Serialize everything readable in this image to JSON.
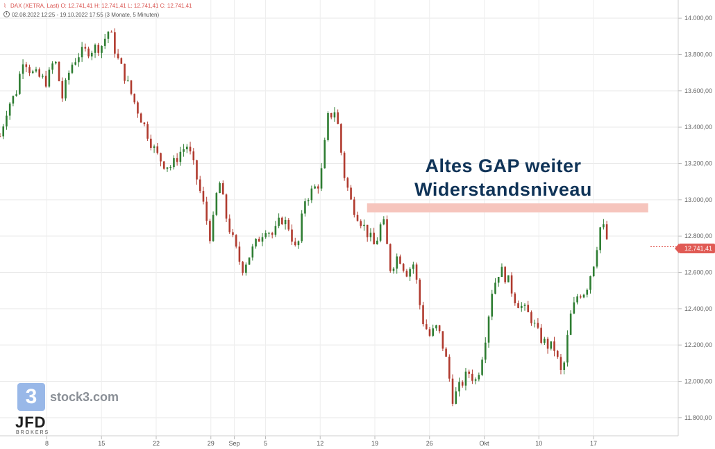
{
  "header": {
    "instrument_line": "DAX (XETRA, Last)  O: 12.741,41  H: 12.741,41  L: 12.741,41  C: 12.741,41",
    "range_line": "02.08.2022 12:25 - 19.10.2022 17:55   (3 Monate, 5 Minuten)"
  },
  "annotation": {
    "line1": "Altes GAP weiter",
    "line2": "Widerstandsniveau"
  },
  "last_price_label": "12.741,41",
  "watermark": {
    "logo_glyph": "3",
    "brand": "stock3.com",
    "broker": "JFD",
    "broker_sub": "BROKERS"
  },
  "colors": {
    "up": "#2e7d32",
    "down": "#b03a2e",
    "resistance_band": "#f6c5bd",
    "annotation_text": "#0f3357",
    "last_price_tag": "#e05a54"
  },
  "chart_data": {
    "type": "candlestick",
    "title": "",
    "xlabel": "",
    "ylabel": "",
    "ylim": [
      11700,
      14100
    ],
    "y_ticks": [
      11800,
      12000,
      12200,
      12400,
      12600,
      12800,
      13000,
      13200,
      13400,
      13600,
      13800,
      14000
    ],
    "y_tick_labels": [
      "11.800,00",
      "12.000,00",
      "12.200,00",
      "12.400,00",
      "12.600,00",
      "12.800,00",
      "13.000,00",
      "13.200,00",
      "13.400,00",
      "13.600,00",
      "13.800,00",
      "14.000,00"
    ],
    "x_ticks": [
      {
        "label": "8",
        "date": "2022-08-08"
      },
      {
        "label": "15",
        "date": "2022-08-15"
      },
      {
        "label": "22",
        "date": "2022-08-22"
      },
      {
        "label": "29",
        "date": "2022-08-29"
      },
      {
        "label": "Sep",
        "date": "2022-09-01"
      },
      {
        "label": "5",
        "date": "2022-09-05"
      },
      {
        "label": "12",
        "date": "2022-09-12"
      },
      {
        "label": "19",
        "date": "2022-09-19"
      },
      {
        "label": "26",
        "date": "2022-09-26"
      },
      {
        "label": "Okt",
        "date": "2022-10-03"
      },
      {
        "label": "10",
        "date": "2022-10-10"
      },
      {
        "label": "17",
        "date": "2022-10-17"
      }
    ],
    "path": [
      {
        "date": "2022-08-02",
        "value": 13350
      },
      {
        "date": "2022-08-03",
        "value": 13520
      },
      {
        "date": "2022-08-04",
        "value": 13580
      },
      {
        "date": "2022-08-05",
        "value": 13790
      },
      {
        "date": "2022-08-06",
        "value": 13700
      },
      {
        "date": "2022-08-08",
        "value": 13650
      },
      {
        "date": "2022-08-09",
        "value": 13780
      },
      {
        "date": "2022-08-10",
        "value": 13560
      },
      {
        "date": "2022-08-11",
        "value": 13730
      },
      {
        "date": "2022-08-12",
        "value": 13800
      },
      {
        "date": "2022-08-15",
        "value": 13850
      },
      {
        "date": "2022-08-16",
        "value": 13940
      },
      {
        "date": "2022-08-17",
        "value": 13780
      },
      {
        "date": "2022-08-18",
        "value": 13680
      },
      {
        "date": "2022-08-19",
        "value": 13560
      },
      {
        "date": "2022-08-22",
        "value": 13250
      },
      {
        "date": "2022-08-23",
        "value": 13200
      },
      {
        "date": "2022-08-24",
        "value": 13180
      },
      {
        "date": "2022-08-25",
        "value": 13260
      },
      {
        "date": "2022-08-26",
        "value": 13300
      },
      {
        "date": "2022-08-27",
        "value": 13150
      },
      {
        "date": "2022-08-28",
        "value": 12980
      },
      {
        "date": "2022-08-29",
        "value": 12780
      },
      {
        "date": "2022-08-30",
        "value": 13120
      },
      {
        "date": "2022-08-31",
        "value": 12900
      },
      {
        "date": "2022-09-01",
        "value": 12750
      },
      {
        "date": "2022-09-02",
        "value": 12620
      },
      {
        "date": "2022-09-03",
        "value": 12700
      },
      {
        "date": "2022-09-05",
        "value": 12850
      },
      {
        "date": "2022-09-06",
        "value": 12800
      },
      {
        "date": "2022-09-07",
        "value": 12900
      },
      {
        "date": "2022-09-08",
        "value": 12850
      },
      {
        "date": "2022-09-09",
        "value": 12700
      },
      {
        "date": "2022-09-10",
        "value": 13000
      },
      {
        "date": "2022-09-12",
        "value": 13100
      },
      {
        "date": "2022-09-13",
        "value": 13450
      },
      {
        "date": "2022-09-14",
        "value": 13500
      },
      {
        "date": "2022-09-15",
        "value": 13150
      },
      {
        "date": "2022-09-16",
        "value": 12980
      },
      {
        "date": "2022-09-17",
        "value": 12900
      },
      {
        "date": "2022-09-19",
        "value": 12740
      },
      {
        "date": "2022-09-20",
        "value": 12900
      },
      {
        "date": "2022-09-21",
        "value": 12620
      },
      {
        "date": "2022-09-22",
        "value": 12700
      },
      {
        "date": "2022-09-23",
        "value": 12600
      },
      {
        "date": "2022-09-24",
        "value": 12650
      },
      {
        "date": "2022-09-25",
        "value": 12350
      },
      {
        "date": "2022-09-26",
        "value": 12250
      },
      {
        "date": "2022-09-27",
        "value": 12300
      },
      {
        "date": "2022-09-28",
        "value": 12150
      },
      {
        "date": "2022-09-29",
        "value": 11900
      },
      {
        "date": "2022-09-30",
        "value": 11980
      },
      {
        "date": "2022-10-01",
        "value": 12050
      },
      {
        "date": "2022-10-02",
        "value": 12000
      },
      {
        "date": "2022-10-03",
        "value": 12200
      },
      {
        "date": "2022-10-04",
        "value": 12500
      },
      {
        "date": "2022-10-05",
        "value": 12620
      },
      {
        "date": "2022-10-06",
        "value": 12560
      },
      {
        "date": "2022-10-07",
        "value": 12450
      },
      {
        "date": "2022-10-08",
        "value": 12400
      },
      {
        "date": "2022-10-09",
        "value": 12350
      },
      {
        "date": "2022-10-10",
        "value": 12250
      },
      {
        "date": "2022-10-11",
        "value": 12200
      },
      {
        "date": "2022-10-12",
        "value": 12180
      },
      {
        "date": "2022-10-13",
        "value": 12020
      },
      {
        "date": "2022-10-14",
        "value": 12350
      },
      {
        "date": "2022-10-15",
        "value": 12480
      },
      {
        "date": "2022-10-16",
        "value": 12500
      },
      {
        "date": "2022-10-17",
        "value": 12650
      },
      {
        "date": "2022-10-18",
        "value": 12880
      },
      {
        "date": "2022-10-19",
        "value": 12741
      }
    ],
    "resistance_zone": {
      "from": 12930,
      "to": 12980,
      "start_date": "2022-09-18",
      "end_date": "2022-10-24"
    },
    "grid": true,
    "last_value": 12741.41
  }
}
